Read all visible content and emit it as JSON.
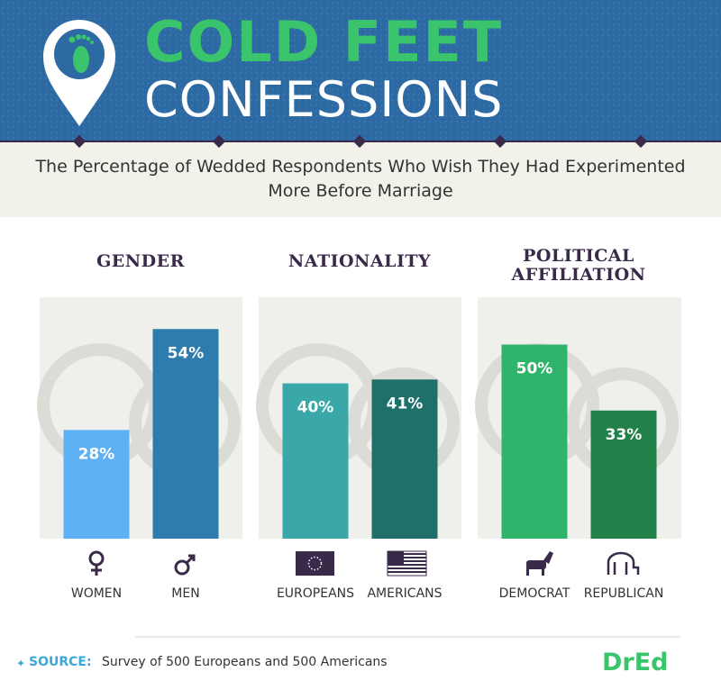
{
  "header": {
    "title_line1": "COLD FEET",
    "title_line2": "CONFESSIONS",
    "subtitle": "The Percentage of Wedded Respondents Who Wish They Had Experimented More Before Marriage"
  },
  "chart_data": [
    {
      "type": "bar",
      "title": "GENDER",
      "categories": [
        "WOMEN",
        "MEN"
      ],
      "values": [
        28,
        54
      ],
      "value_labels": [
        "28%",
        "54%"
      ],
      "colors": [
        "#5eb1f5",
        "#2e7cae"
      ]
    },
    {
      "type": "bar",
      "title": "NATIONALITY",
      "categories": [
        "EUROPEANS",
        "AMERICANS"
      ],
      "values": [
        40,
        41
      ],
      "value_labels": [
        "40%",
        "41%"
      ],
      "colors": [
        "#3aa8a8",
        "#1f706b"
      ]
    },
    {
      "type": "bar",
      "title": "POLITICAL AFFILIATION",
      "categories": [
        "DEMOCRAT",
        "REPUBLICAN"
      ],
      "values": [
        50,
        33
      ],
      "value_labels": [
        "50%",
        "33%"
      ],
      "colors": [
        "#2fb56b",
        "#228048"
      ]
    }
  ],
  "footer": {
    "source_label": "SOURCE:",
    "source_text": "Survey of 500 Europeans and 500 Americans",
    "logo": "DrEd"
  }
}
